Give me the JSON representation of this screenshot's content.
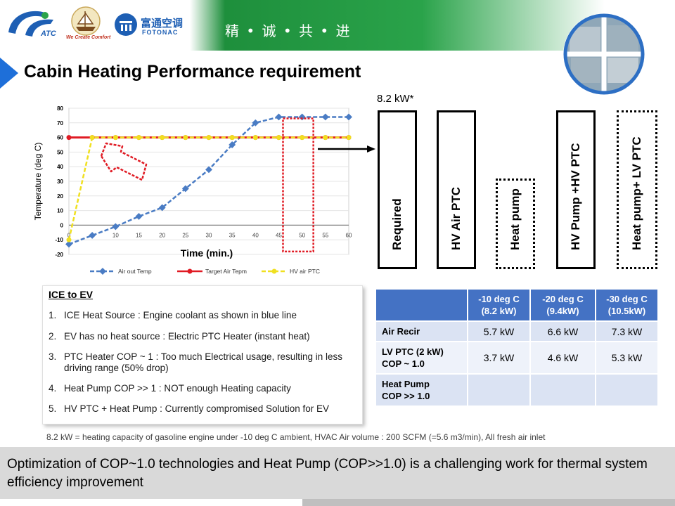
{
  "header": {
    "logo1_text": "ATC",
    "logo2_text": "We Create Comfort",
    "logo3_cn": "富通空调",
    "logo3_en": "FOTONAC",
    "slogan": "精 • 诚 • 共 • 进"
  },
  "slide": {
    "title": "Cabin Heating Performance requirement",
    "note_value": "8.2 kW*"
  },
  "chart_data": {
    "type": "line",
    "xlabel": "Time (min.)",
    "ylabel": "Temperature (deg C)",
    "xlim": [
      0,
      60
    ],
    "ylim": [
      -20,
      80
    ],
    "x_ticks": [
      "0",
      "5",
      "10",
      "15",
      "20",
      "25",
      "30",
      "35",
      "40",
      "45",
      "50",
      "55",
      "60"
    ],
    "y_ticks": [
      "-20",
      "-10",
      "0",
      "10",
      "20",
      "30",
      "40",
      "50",
      "60",
      "70",
      "80"
    ],
    "grid": "horizontal",
    "legend": "bottom",
    "series": [
      {
        "name": "Air out Temp",
        "color": "#4a7cc4",
        "style": "dashed",
        "x": [
          0,
          5,
          10,
          15,
          20,
          25,
          30,
          35,
          40,
          45,
          50,
          55,
          60
        ],
        "y": [
          -13,
          -7,
          -1,
          6,
          12,
          25,
          38,
          55,
          70,
          74,
          74,
          74,
          74
        ]
      },
      {
        "name": "Target Air Tepm",
        "color": "#e01b24",
        "style": "solid",
        "x": [
          0,
          5,
          10,
          15,
          20,
          25,
          30,
          35,
          40,
          45,
          50,
          55,
          60
        ],
        "y": [
          60,
          60,
          60,
          60,
          60,
          60,
          60,
          60,
          60,
          60,
          60,
          60,
          60
        ]
      },
      {
        "name": "HV air PTC",
        "color": "#f0e020",
        "style": "dashed",
        "x": [
          0,
          5,
          10,
          15,
          20,
          25,
          30,
          35,
          40,
          45,
          50,
          55,
          60
        ],
        "y": [
          -10,
          60,
          60,
          60,
          60,
          60,
          60,
          60,
          60,
          60,
          60,
          60,
          60
        ]
      }
    ]
  },
  "columns": [
    {
      "label": "Required",
      "style": "solid"
    },
    {
      "label": "HV Air PTC",
      "style": "solid"
    },
    {
      "label": "Heat pump",
      "style": "dotted"
    },
    {
      "label": "HV Pump +HV PTC",
      "style": "solid"
    },
    {
      "label": "Heat pump+ LV PTC",
      "style": "dotted"
    }
  ],
  "ice": {
    "title": "ICE to EV",
    "items": [
      {
        "num": "1.",
        "text": "ICE Heat Source : Engine coolant as shown in blue line"
      },
      {
        "num": "2.",
        "text": "EV has no heat source : Electric PTC Heater (instant heat)"
      },
      {
        "num": "3.",
        "text": "PTC Heater COP ~ 1 : Too much Electrical usage, resulting in less driving range (50% drop)"
      },
      {
        "num": "4.",
        "text": "Heat Pump COP >> 1 : NOT enough Heating capacity"
      },
      {
        "num": "5.",
        "text": "HV PTC + Heat Pump : Currently compromised Solution for EV"
      }
    ]
  },
  "table": {
    "headers": [
      {
        "line1": "-10 deg C",
        "line2": "(8.2 kW)"
      },
      {
        "line1": "-20 deg C",
        "line2": "(9.4kW)"
      },
      {
        "line1": "-30 deg C",
        "line2": "(10.5kW)"
      }
    ],
    "rows": [
      {
        "line1": "Air Recir",
        "line2": "",
        "values": [
          "5.7 kW",
          "6.6 kW",
          "7.3 kW"
        ]
      },
      {
        "line1": "LV PTC (2 kW)",
        "line2": "COP ~ 1.0",
        "values": [
          "3.7 kW",
          "4.6 kW",
          "5.3 kW"
        ]
      },
      {
        "line1": "Heat Pump",
        "line2": "COP >> 1.0",
        "values": [
          "",
          "",
          ""
        ]
      }
    ]
  },
  "footnote": "8.2 kW = heating capacity of gasoline engine under -10 deg C ambient, HVAC Air volume : 200 SCFM (=5.6 m3/min), All fresh air inlet",
  "bottom": {
    "text": "Optimization of COP~1.0 technologies and Heat Pump (COP>>1.0) is a challenging work for thermal system efficiency improvement"
  }
}
